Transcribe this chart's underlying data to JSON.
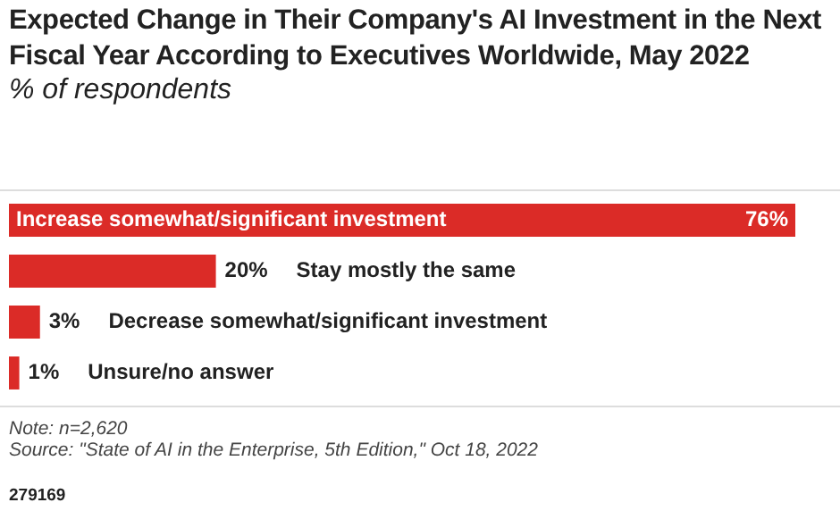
{
  "chart_data": {
    "type": "bar",
    "orientation": "horizontal",
    "title": "Expected Change in Their Company's AI Investment in the Next Fiscal Year According to Executives Worldwide, May 2022",
    "subtitle": "% of respondents",
    "categories": [
      "Increase somewhat/significant investment",
      "Stay mostly the same",
      "Decrease somewhat/significant investment",
      "Unsure/no answer"
    ],
    "values": [
      76,
      20,
      3,
      1
    ],
    "color": "#db2b27",
    "value_labels": [
      "76%",
      "20%",
      "3%",
      "1%"
    ],
    "legend": false,
    "annotations": [
      "Note: n=2,620",
      "Source: \"State of AI in the Enterprise, 5th Edition,\" Oct 18, 2022",
      "279169"
    ]
  }
}
